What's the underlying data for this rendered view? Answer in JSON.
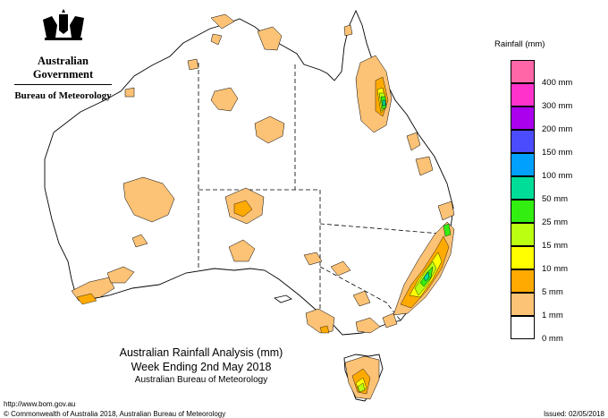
{
  "header": {
    "government": "Australian Government",
    "agency": "Bureau of Meteorology"
  },
  "map_title": {
    "line1": "Australian Rainfall Analysis (mm)",
    "line2": "Week Ending 2nd May 2018",
    "line3": "Australian Bureau of Meteorology"
  },
  "footer": {
    "url": "http://www.bom.gov.au",
    "copyright": "© Commonwealth of Australia 2018, Australian Bureau of Meteorology",
    "issued": "Issued: 02/05/2018"
  },
  "legend": {
    "title": "Rainfall (mm)",
    "items": [
      {
        "label": "",
        "color": "#ff66a8"
      },
      {
        "label": "400 mm",
        "color": "#ff33cc"
      },
      {
        "label": "300 mm",
        "color": "#aa00ee"
      },
      {
        "label": "200 mm",
        "color": "#4c4cff"
      },
      {
        "label": "150 mm",
        "color": "#00a0ff"
      },
      {
        "label": "100 mm",
        "color": "#00dd99"
      },
      {
        "label": "50 mm",
        "color": "#33ee11"
      },
      {
        "label": "25 mm",
        "color": "#bbff11"
      },
      {
        "label": "15 mm",
        "color": "#ffff00"
      },
      {
        "label": "10 mm",
        "color": "#ffaa00"
      },
      {
        "label": "5 mm",
        "color": "#fcc275"
      },
      {
        "label": "1 mm",
        "color": "#ffffff"
      },
      {
        "label": "0 mm",
        "color": ""
      }
    ]
  },
  "colors": {
    "rain_1mm": "#fcc275",
    "rain_5mm": "#ffaa00",
    "rain_10mm": "#ffff00",
    "rain_15mm": "#bbff11",
    "rain_25mm": "#33ee11",
    "rain_50mm": "#00dd99",
    "coastline": "#000000"
  }
}
